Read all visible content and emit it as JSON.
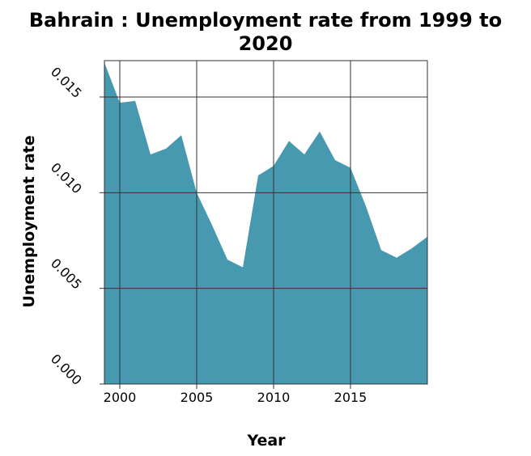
{
  "chart_data": {
    "type": "area",
    "title": "Bahrain : Unemployment rate from 1999 to 2020",
    "title_lines": [
      "Bahrain : Unemployment rate from 1999 to",
      "2020"
    ],
    "xlabel": "Year",
    "ylabel": "Unemployment rate",
    "xlim": [
      1999,
      2020
    ],
    "ylim": [
      0,
      0.0169
    ],
    "xticks": [
      2000,
      2005,
      2010,
      2015
    ],
    "xtick_labels": [
      "2000",
      "2005",
      "2010",
      "2015"
    ],
    "yticks": [
      0.0,
      0.005,
      0.01,
      0.015
    ],
    "ytick_labels": [
      "0.000",
      "0.005",
      "0.010",
      "0.015"
    ],
    "grid": true,
    "fill_color": "#4799b0",
    "series": [
      {
        "x": [
          1999,
          2000,
          2001,
          2002,
          2003,
          2004,
          2005,
          2006,
          2007,
          2008,
          2009,
          2010,
          2011,
          2012,
          2013,
          2014,
          2015,
          2016,
          2017,
          2018,
          2019,
          2020
        ],
        "values": [
          0.0168,
          0.0147,
          0.0148,
          0.012,
          0.0123,
          0.013,
          0.01,
          0.0083,
          0.0065,
          0.0061,
          0.0109,
          0.0114,
          0.0127,
          0.012,
          0.0132,
          0.0117,
          0.0113,
          0.0093,
          0.007,
          0.0066,
          0.0071,
          0.0077
        ]
      }
    ]
  }
}
